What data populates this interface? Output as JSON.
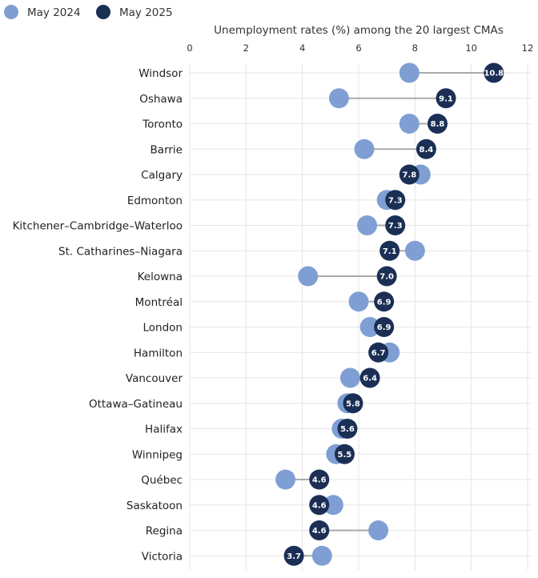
{
  "chart_data": {
    "type": "dumbbell",
    "title": "Unemployment rates (%) among the 20 largest CMAs",
    "xlim": [
      0,
      12
    ],
    "ticks": [
      0,
      2,
      4,
      6,
      8,
      10,
      12
    ],
    "grid": true,
    "legend_position": "top-left",
    "colors": {
      "may2024": "#7f9fd4",
      "may2025": "#1b2f55",
      "connector": "#aaaaaa",
      "label_text": "#ffffff"
    },
    "series": [
      {
        "name": "May 2024",
        "key": "may2024"
      },
      {
        "name": "May 2025",
        "key": "may2025"
      }
    ],
    "rows": [
      {
        "category": "Windsor",
        "may2024": 7.8,
        "may2025": 10.8,
        "label": "10.8"
      },
      {
        "category": "Oshawa",
        "may2024": 5.3,
        "may2025": 9.1,
        "label": "9.1"
      },
      {
        "category": "Toronto",
        "may2024": 7.8,
        "may2025": 8.8,
        "label": "8.8"
      },
      {
        "category": "Barrie",
        "may2024": 6.2,
        "may2025": 8.4,
        "label": "8.4"
      },
      {
        "category": "Calgary",
        "may2024": 8.2,
        "may2025": 7.8,
        "label": "7.8"
      },
      {
        "category": "Edmonton",
        "may2024": 7.0,
        "may2025": 7.3,
        "label": "7.3"
      },
      {
        "category": "Kitchener–Cambridge–Waterloo",
        "may2024": 6.3,
        "may2025": 7.3,
        "label": "7.3"
      },
      {
        "category": "St. Catharines–Niagara",
        "may2024": 8.0,
        "may2025": 7.1,
        "label": "7.1"
      },
      {
        "category": "Kelowna",
        "may2024": 4.2,
        "may2025": 7.0,
        "label": "7.0"
      },
      {
        "category": "Montréal",
        "may2024": 6.0,
        "may2025": 6.9,
        "label": "6.9"
      },
      {
        "category": "London",
        "may2024": 6.4,
        "may2025": 6.9,
        "label": "6.9"
      },
      {
        "category": "Hamilton",
        "may2024": 7.1,
        "may2025": 6.7,
        "label": "6.7"
      },
      {
        "category": "Vancouver",
        "may2024": 5.7,
        "may2025": 6.4,
        "label": "6.4"
      },
      {
        "category": "Ottawa–Gatineau",
        "may2024": 5.6,
        "may2025": 5.8,
        "label": "5.8"
      },
      {
        "category": "Halifax",
        "may2024": 5.4,
        "may2025": 5.6,
        "label": "5.6"
      },
      {
        "category": "Winnipeg",
        "may2024": 5.2,
        "may2025": 5.5,
        "label": "5.5"
      },
      {
        "category": "Québec",
        "may2024": 3.4,
        "may2025": 4.6,
        "label": "4.6"
      },
      {
        "category": "Saskatoon",
        "may2024": 5.1,
        "may2025": 4.6,
        "label": "4.6"
      },
      {
        "category": "Regina",
        "may2024": 6.7,
        "may2025": 4.6,
        "label": "4.6"
      },
      {
        "category": "Victoria",
        "may2024": 4.7,
        "may2025": 3.7,
        "label": "3.7"
      }
    ]
  }
}
